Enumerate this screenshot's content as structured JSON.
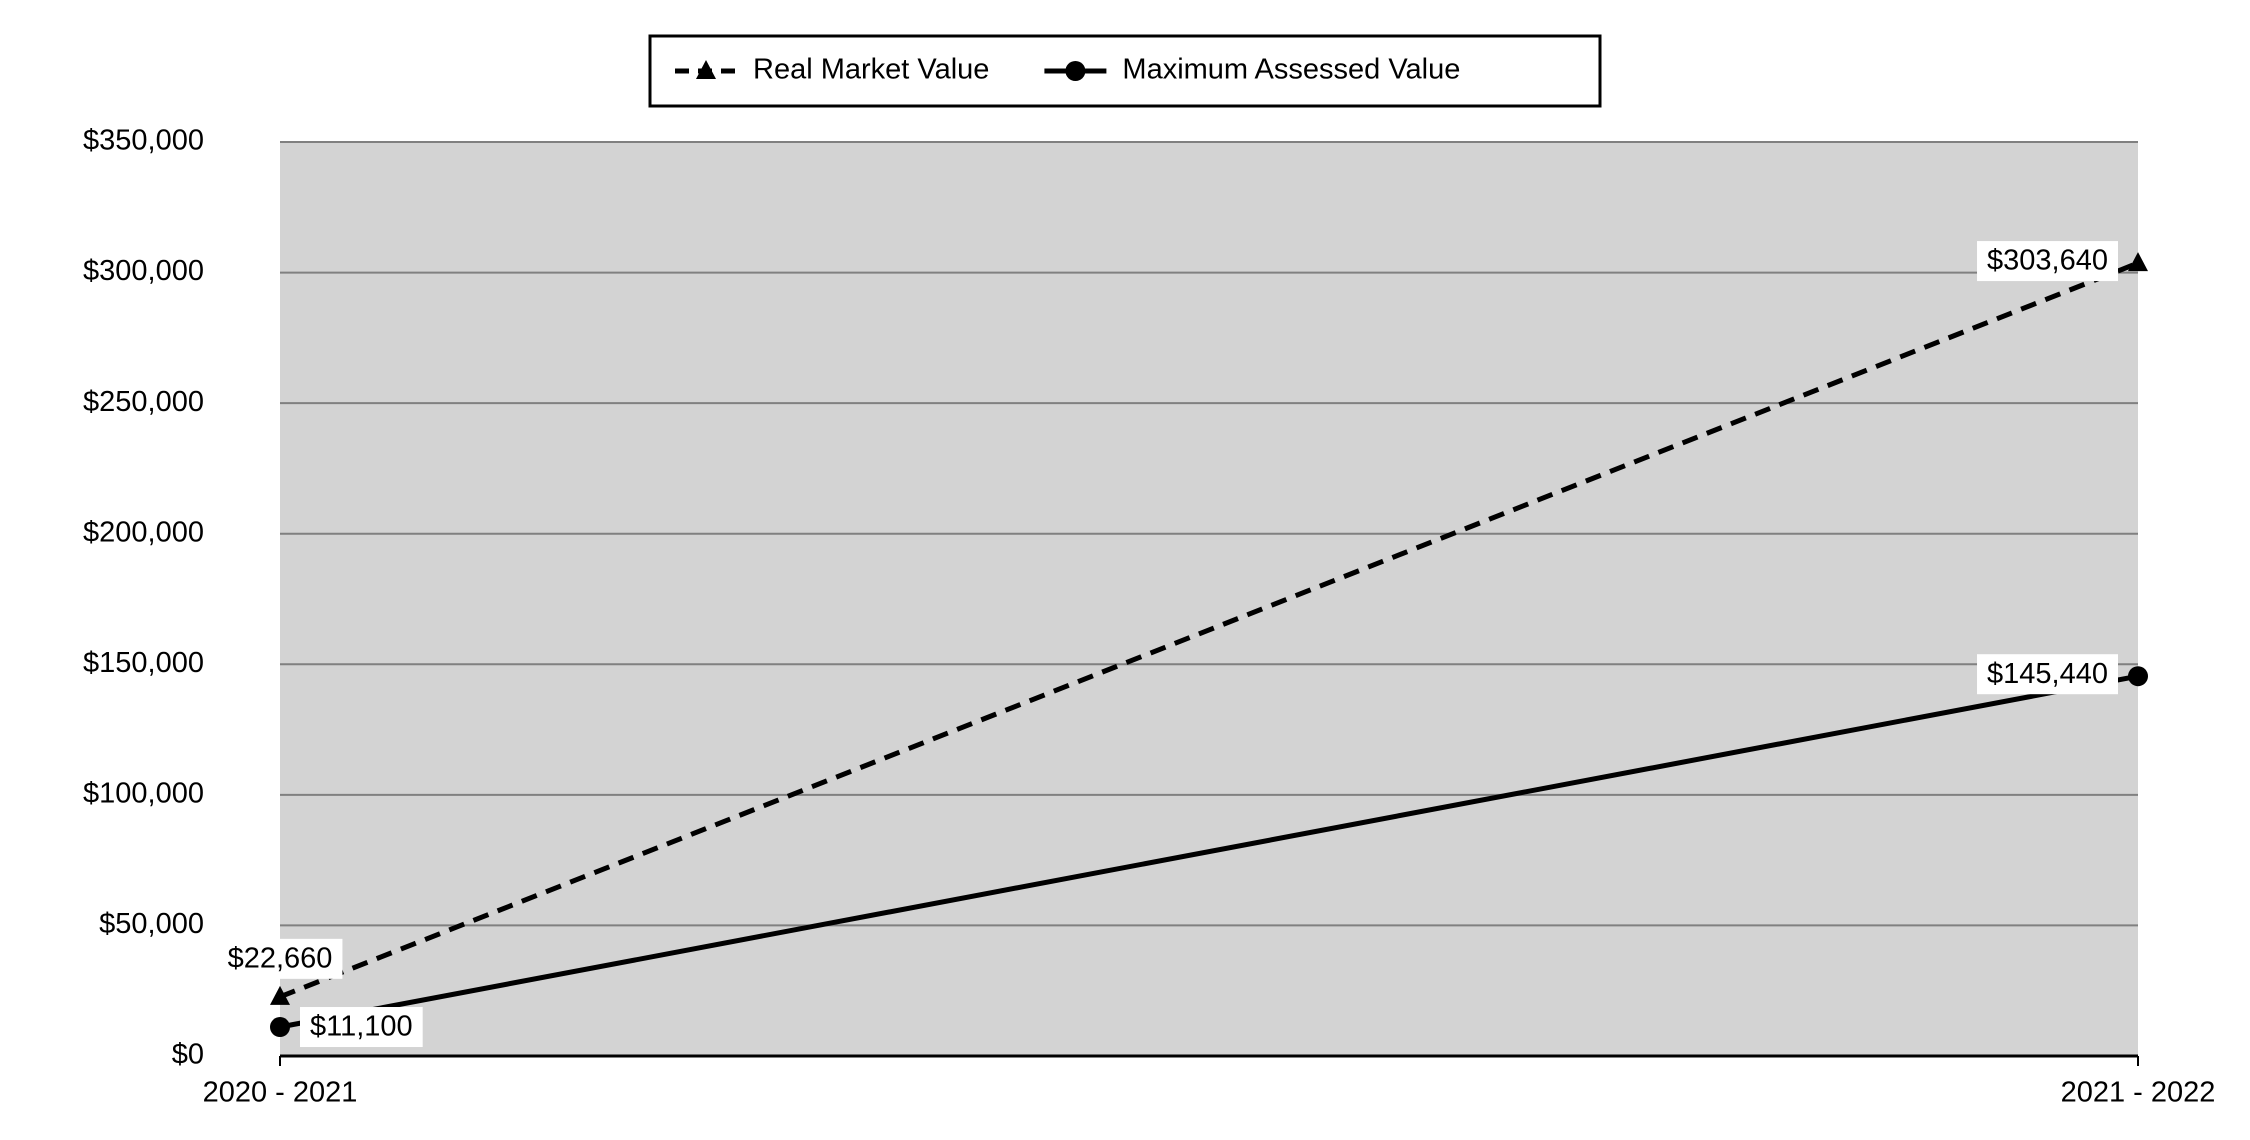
{
  "chart_data": {
    "type": "line",
    "categories": [
      "2020 - 2021",
      "2021 - 2022"
    ],
    "series": [
      {
        "name": "Real Market Value",
        "color": "#000000",
        "line_style": "dashed",
        "marker": "triangle",
        "values": [
          22660,
          303640
        ],
        "value_labels": [
          "$22,660",
          "$303,640"
        ]
      },
      {
        "name": "Maximum Assessed Value",
        "color": "#000000",
        "line_style": "solid",
        "marker": "circle",
        "values": [
          11100,
          145440
        ],
        "value_labels": [
          "$11,100",
          "$145,440"
        ]
      }
    ],
    "ylim": [
      0,
      350000
    ],
    "yticks": [
      {
        "value": 0,
        "label": "$0"
      },
      {
        "value": 50000,
        "label": "$50,000"
      },
      {
        "value": 100000,
        "label": "$100,000"
      },
      {
        "value": 150000,
        "label": "$150,000"
      },
      {
        "value": 200000,
        "label": "$200,000"
      },
      {
        "value": 250000,
        "label": "$250,000"
      },
      {
        "value": 300000,
        "label": "$300,000"
      },
      {
        "value": 350000,
        "label": "$350,000"
      }
    ],
    "grid": true,
    "legend": "top",
    "plot_background": "#d3d3d3"
  }
}
